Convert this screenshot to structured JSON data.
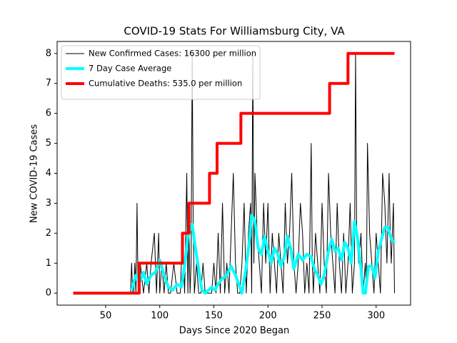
{
  "chart_data": {
    "type": "line",
    "title": "COVID-19 Stats For Williamsburg City, VA",
    "x_label": "Days Since 2020 Began",
    "y_label": "New COVID-19 Cases",
    "xlim": [
      5.15,
      331.85
    ],
    "xticks": [
      50,
      100,
      150,
      200,
      250,
      300
    ],
    "ylim": [
      -0.4,
      8.4
    ],
    "yticks": [
      0,
      1,
      2,
      3,
      4,
      5,
      6,
      7,
      8
    ],
    "legend": "upper left",
    "series": [
      {
        "name": "New Confirmed Cases: 16300 per million",
        "color": "#000000",
        "line_width": 1,
        "x": [
          20,
          70,
          73,
          74,
          75,
          76,
          77,
          78,
          79,
          80,
          81,
          82,
          85,
          88,
          90,
          92,
          95,
          97,
          99,
          100,
          102,
          104,
          106,
          108,
          110,
          113,
          116,
          119,
          121,
          123,
          125,
          126,
          127,
          128,
          129,
          130,
          131,
          132,
          134,
          136,
          138,
          140,
          142,
          144,
          146,
          148,
          150,
          152,
          154,
          156,
          158,
          160,
          162,
          164,
          166,
          168,
          170,
          172,
          174,
          176,
          178,
          180,
          182,
          184,
          185,
          186,
          187,
          188,
          190,
          192,
          194,
          196,
          198,
          200,
          202,
          204,
          206,
          208,
          210,
          212,
          214,
          216,
          218,
          220,
          222,
          224,
          226,
          228,
          230,
          232,
          234,
          236,
          238,
          240,
          241,
          242,
          244,
          246,
          248,
          250,
          252,
          254,
          256,
          258,
          260,
          262,
          264,
          266,
          268,
          270,
          272,
          274,
          276,
          278,
          280,
          281,
          282,
          284,
          286,
          288,
          290,
          291,
          292,
          294,
          296,
          298,
          300,
          302,
          304,
          306,
          308,
          310,
          312,
          313,
          314,
          316,
          317
        ],
        "values": [
          0,
          0,
          0,
          1,
          0,
          0,
          1,
          0,
          3,
          0,
          0,
          1,
          0,
          1,
          0,
          1,
          2,
          0,
          2,
          0,
          1,
          0,
          1,
          0,
          0,
          1,
          0,
          0,
          2,
          0,
          4,
          0,
          2,
          0,
          1,
          8,
          2,
          0,
          1,
          0,
          0,
          1,
          0,
          0,
          0,
          0,
          1,
          0,
          2,
          0,
          3,
          0,
          1,
          0,
          2,
          4,
          1,
          0,
          0,
          1,
          3,
          0,
          2,
          3,
          0,
          8,
          1,
          4,
          2,
          1,
          0,
          3,
          1,
          3,
          0,
          2,
          1,
          0,
          2,
          1,
          0,
          3,
          1,
          2,
          4,
          1,
          0,
          1,
          3,
          2,
          0,
          1,
          0,
          5,
          1,
          0,
          2,
          1,
          0,
          3,
          1,
          0,
          4,
          2,
          1,
          0,
          3,
          1,
          0,
          2,
          0,
          1,
          3,
          0,
          1,
          8,
          2,
          1,
          2,
          0,
          1,
          0,
          5,
          2,
          1,
          0,
          2,
          1,
          0,
          4,
          3,
          1,
          4,
          2,
          1,
          3,
          0
        ]
      },
      {
        "name": "7 Day Case Average",
        "color": "#00ffff",
        "line_width": 4,
        "x": [
          74,
          78,
          82,
          85,
          88,
          92,
          96,
          100,
          104,
          108,
          112,
          116,
          120,
          123,
          126,
          130,
          133,
          136,
          139,
          142,
          145,
          148,
          151,
          154,
          158,
          162,
          166,
          170,
          174,
          176,
          180,
          183,
          185,
          188,
          191,
          194,
          197,
          200,
          203,
          206,
          209,
          212,
          215,
          218,
          221,
          224,
          228,
          232,
          236,
          240,
          243,
          246,
          249,
          252,
          256,
          259,
          262,
          265,
          268,
          271,
          274,
          277,
          280,
          283,
          286,
          288,
          290,
          293,
          296,
          299,
          302,
          305,
          308,
          311,
          314,
          317
        ],
        "values": [
          0.1,
          0.6,
          0.4,
          0.7,
          0.3,
          0.6,
          0.7,
          1.1,
          0.6,
          0.2,
          0.1,
          0.3,
          0.2,
          0.9,
          1.9,
          2.3,
          1.5,
          0.8,
          0.1,
          0.0,
          0.1,
          0.2,
          0.1,
          0.3,
          0.5,
          0.6,
          0.9,
          0.6,
          0.2,
          0.0,
          0.9,
          1.8,
          2.6,
          2.4,
          1.5,
          1.3,
          1.9,
          1.4,
          1.0,
          1.5,
          1.3,
          0.9,
          1.2,
          1.9,
          1.5,
          0.8,
          1.3,
          1.1,
          1.3,
          1.2,
          0.8,
          0.6,
          0.3,
          0.6,
          1.4,
          1.8,
          1.4,
          1.5,
          1.1,
          1.7,
          1.5,
          1.0,
          2.4,
          1.8,
          0.8,
          0.0,
          0.0,
          0.9,
          0.9,
          0.5,
          1.4,
          1.8,
          2.2,
          2.2,
          1.8,
          1.7
        ]
      },
      {
        "name": "Cumulative Deaths: 535.0 per million",
        "color": "#ff0000",
        "line_width": 4,
        "x": [
          20,
          81,
          81,
          121,
          121,
          127,
          127,
          146,
          146,
          153,
          153,
          175,
          175,
          257,
          257,
          274,
          274,
          317
        ],
        "values": [
          0,
          0,
          1,
          1,
          2,
          2,
          3,
          3,
          4,
          4,
          5,
          5,
          6,
          6,
          7,
          7,
          8,
          8
        ]
      }
    ]
  }
}
